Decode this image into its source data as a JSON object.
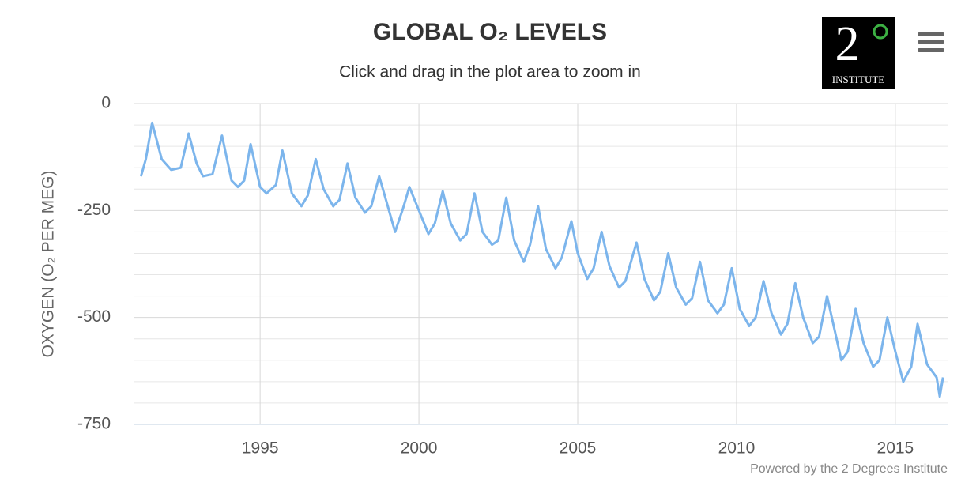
{
  "chart_data": {
    "type": "line",
    "title": "GLOBAL O₂ LEVELS",
    "subtitle": "Click and drag in the plot area to zoom in",
    "y_axis_label": "OXYGEN (O₂ PER MEG)",
    "credits": "Powered by the 2 Degrees Institute",
    "logo": {
      "numeral": "2",
      "caption": "INSTITUTE"
    },
    "xlim": [
      1991.04,
      2016.67
    ],
    "xticks": [
      1995,
      2000,
      2005,
      2010,
      2015
    ],
    "ylim": [
      -750,
      0
    ],
    "yticks": [
      0,
      -250,
      -500,
      -750
    ],
    "y_minor_ticks": [
      -50,
      -100,
      -150,
      -200,
      -300,
      -350,
      -400,
      -450,
      -550,
      -600,
      -650,
      -700
    ],
    "grid": true,
    "series": [
      {
        "name": "Oxygen",
        "color": "#7cb5ec",
        "x": [
          1991.25,
          1991.4,
          1991.6,
          1991.9,
          1992.2,
          1992.5,
          1992.75,
          1993.0,
          1993.2,
          1993.5,
          1993.8,
          1994.1,
          1994.3,
          1994.5,
          1994.7,
          1995.0,
          1995.2,
          1995.5,
          1995.7,
          1996.0,
          1996.3,
          1996.5,
          1996.75,
          1997.0,
          1997.3,
          1997.5,
          1997.75,
          1998.0,
          1998.3,
          1998.5,
          1998.75,
          1999.0,
          1999.25,
          1999.5,
          1999.7,
          2000.0,
          2000.3,
          2000.5,
          2000.75,
          2001.0,
          2001.3,
          2001.5,
          2001.75,
          2002.0,
          2002.3,
          2002.5,
          2002.75,
          2003.0,
          2003.3,
          2003.5,
          2003.75,
          2004.0,
          2004.3,
          2004.5,
          2004.8,
          2005.0,
          2005.3,
          2005.5,
          2005.75,
          2006.0,
          2006.3,
          2006.5,
          2006.85,
          2007.1,
          2007.4,
          2007.6,
          2007.85,
          2008.1,
          2008.4,
          2008.6,
          2008.85,
          2009.1,
          2009.4,
          2009.6,
          2009.85,
          2010.1,
          2010.4,
          2010.6,
          2010.85,
          2011.1,
          2011.4,
          2011.6,
          2011.85,
          2012.1,
          2012.4,
          2012.6,
          2012.85,
          2013.0,
          2013.3,
          2013.5,
          2013.75,
          2014.0,
          2014.3,
          2014.5,
          2014.75,
          2015.0,
          2015.25,
          2015.5,
          2015.7,
          2016.0,
          2016.3,
          2016.4,
          2016.5
        ],
        "values": [
          -170,
          -130,
          -45,
          -130,
          -155,
          -150,
          -70,
          -140,
          -170,
          -165,
          -75,
          -180,
          -195,
          -180,
          -95,
          -195,
          -210,
          -190,
          -110,
          -210,
          -240,
          -215,
          -130,
          -200,
          -240,
          -225,
          -140,
          -220,
          -255,
          -240,
          -170,
          -235,
          -300,
          -245,
          -195,
          -250,
          -305,
          -280,
          -205,
          -280,
          -320,
          -305,
          -210,
          -300,
          -330,
          -320,
          -220,
          -320,
          -370,
          -330,
          -240,
          -340,
          -385,
          -360,
          -275,
          -350,
          -410,
          -385,
          -300,
          -380,
          -430,
          -415,
          -325,
          -410,
          -460,
          -440,
          -350,
          -430,
          -470,
          -455,
          -370,
          -460,
          -490,
          -470,
          -385,
          -480,
          -520,
          -500,
          -415,
          -490,
          -540,
          -515,
          -420,
          -500,
          -560,
          -545,
          -450,
          -500,
          -600,
          -580,
          -480,
          -560,
          -615,
          -600,
          -500,
          -580,
          -650,
          -615,
          -515,
          -610,
          -640,
          -685,
          -640
        ]
      }
    ]
  }
}
